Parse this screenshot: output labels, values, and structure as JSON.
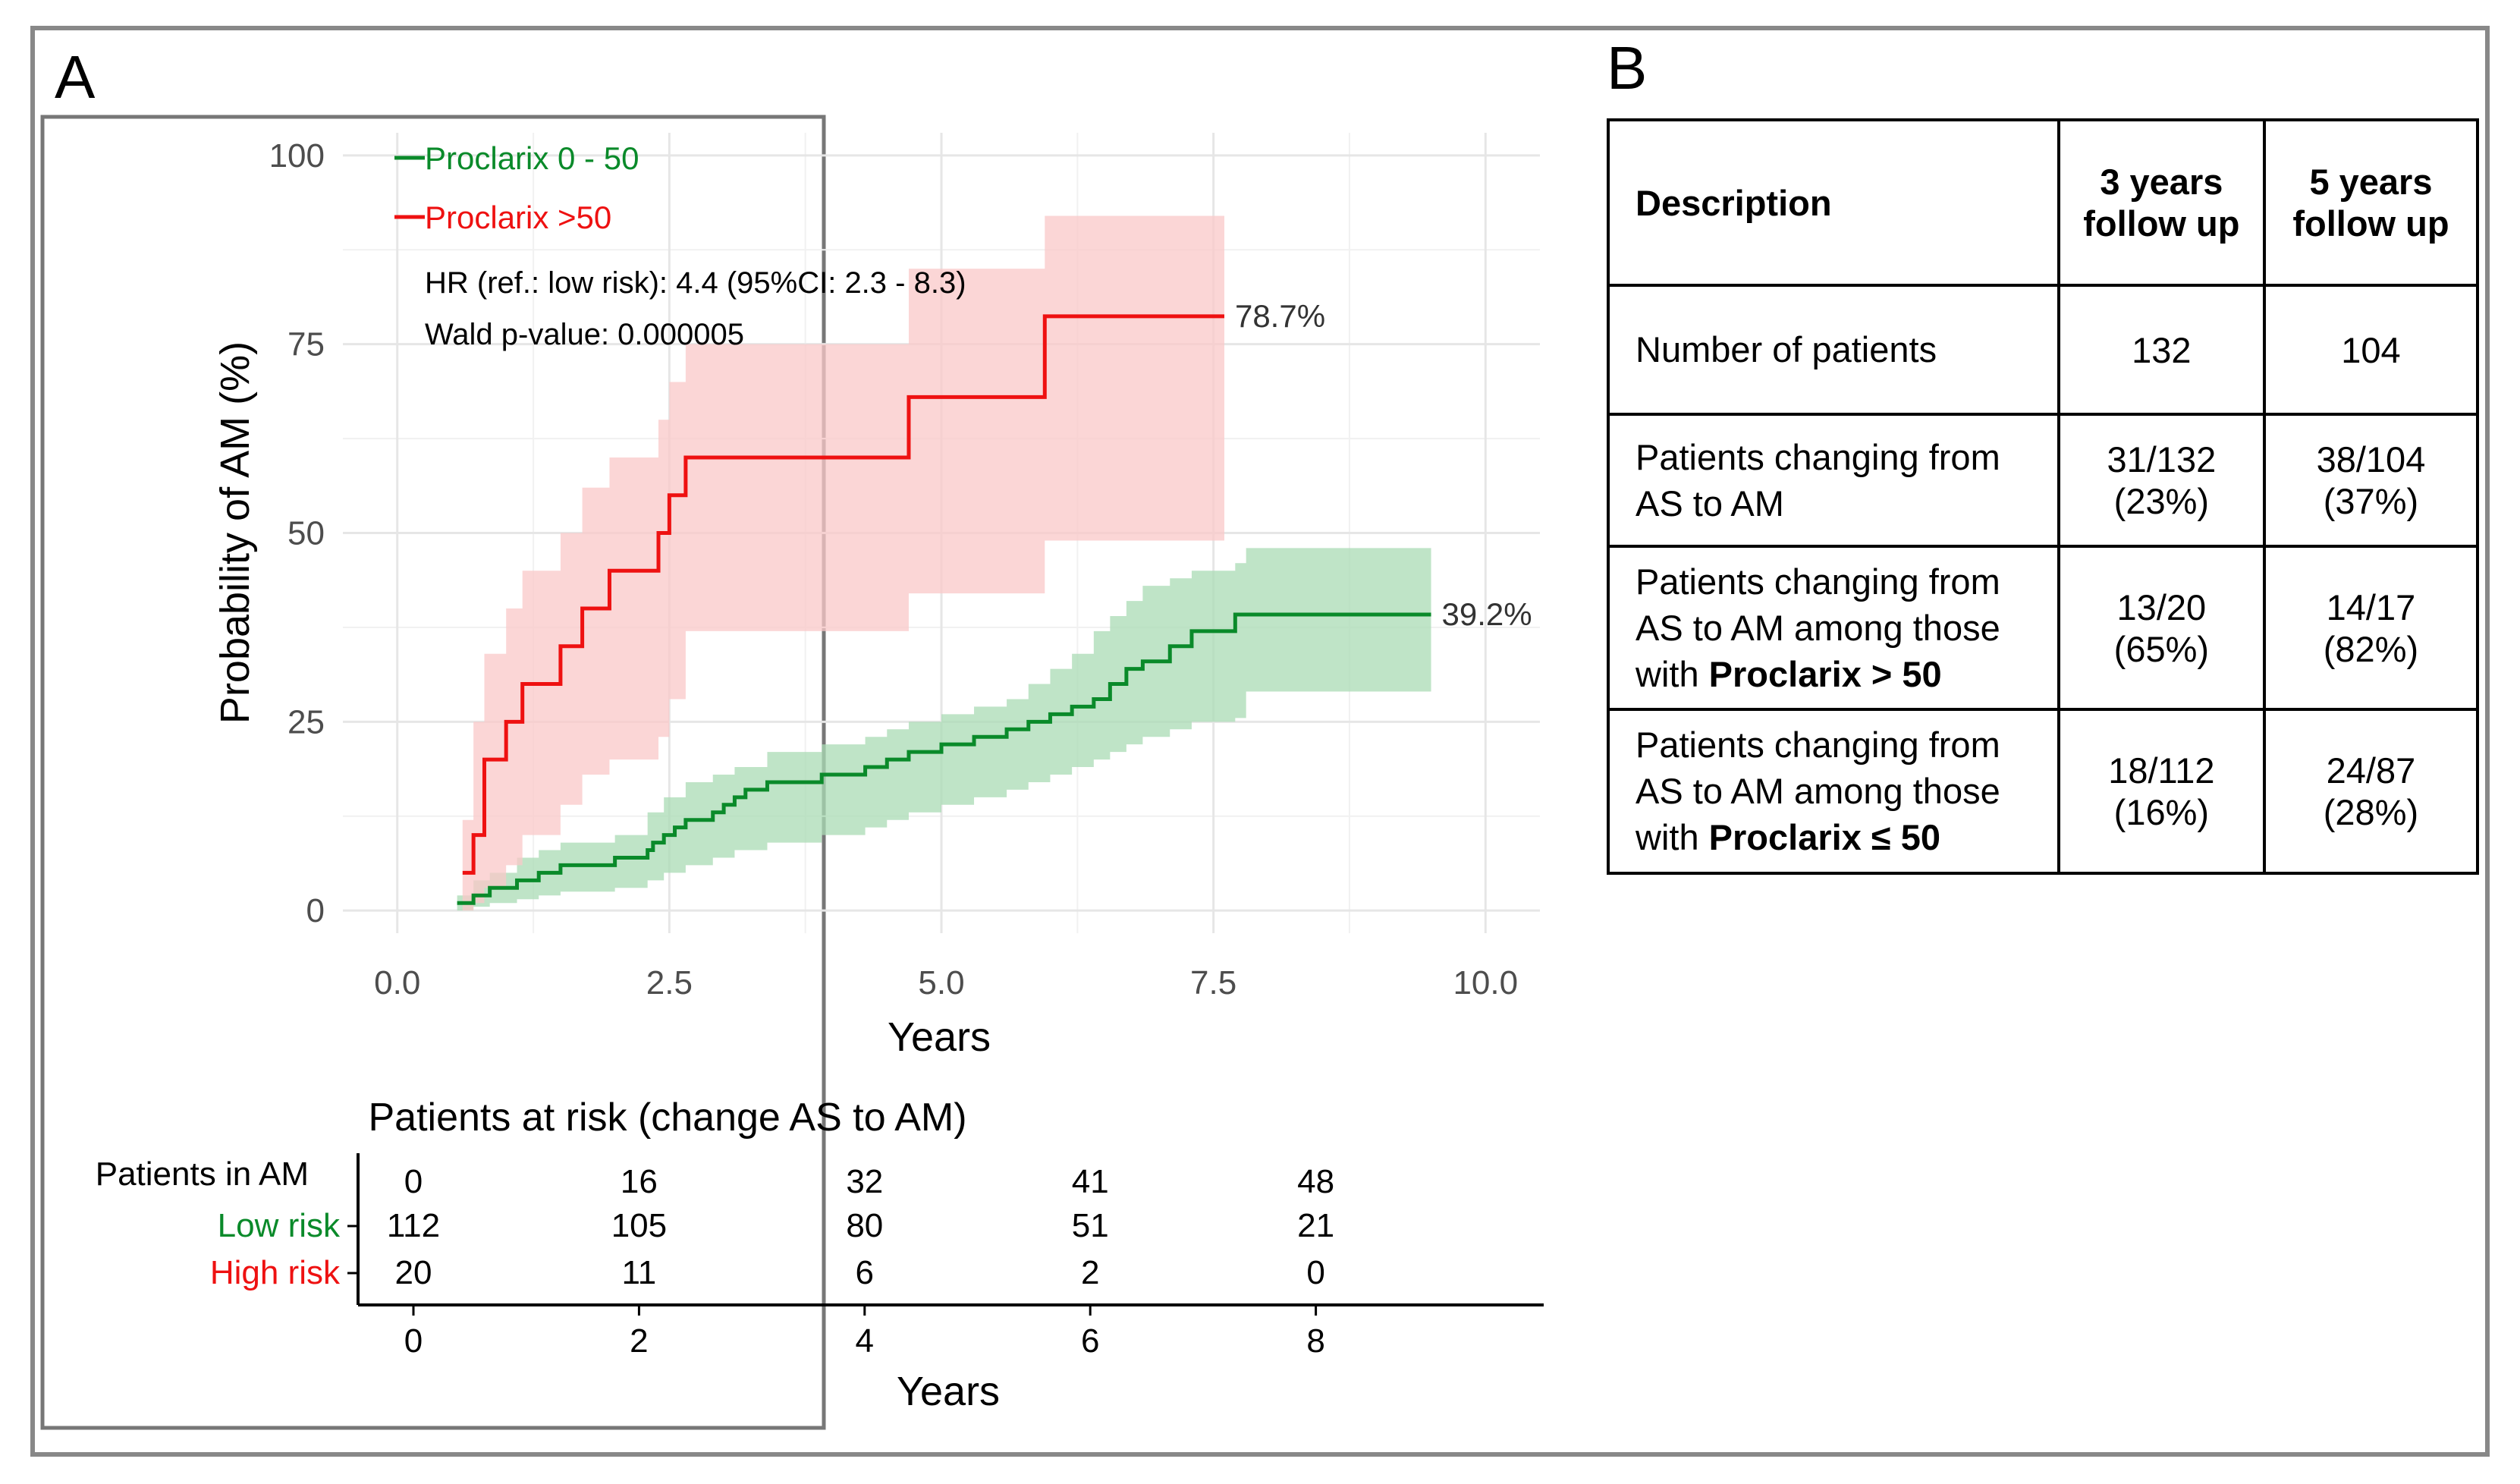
{
  "panel_a_letter": "A",
  "panel_b_letter": "B",
  "chart_data": {
    "type": "line",
    "step": true,
    "xlabel": "Years",
    "ylabel": "Probability of AM (%)",
    "xlim": [
      -0.5,
      10.5
    ],
    "ylim": [
      -3,
      103
    ],
    "x_ticks": [
      0,
      2.5,
      5,
      7.5,
      10
    ],
    "x_tick_labels": [
      "0.0",
      "2.5",
      "5.0",
      "7.5",
      "10.0"
    ],
    "y_ticks": [
      0,
      25,
      50,
      75,
      100
    ],
    "y_tick_labels": [
      "0",
      "25",
      "50",
      "75",
      "100"
    ],
    "grid": true,
    "legend_position": "top-left",
    "annotations": [
      "HR (ref.: low risk): 4.4 (95%CI: 2.3 - 8.3)",
      "Wald p-value: 0.000005"
    ],
    "series": [
      {
        "name": "Proclarix 0 - 50",
        "color": "#0a8a2a",
        "band_color": "#a9dbb4",
        "end_label": "39.2%",
        "points": [
          [
            0.55,
            1
          ],
          [
            0.7,
            2
          ],
          [
            0.85,
            3
          ],
          [
            1.1,
            4
          ],
          [
            1.3,
            5
          ],
          [
            1.5,
            6
          ],
          [
            2.0,
            7
          ],
          [
            2.3,
            8
          ],
          [
            2.35,
            9
          ],
          [
            2.45,
            10
          ],
          [
            2.55,
            11
          ],
          [
            2.65,
            12
          ],
          [
            2.9,
            13
          ],
          [
            3.0,
            14
          ],
          [
            3.1,
            15
          ],
          [
            3.2,
            16
          ],
          [
            3.4,
            17
          ],
          [
            3.9,
            18
          ],
          [
            4.3,
            19
          ],
          [
            4.5,
            20
          ],
          [
            4.7,
            21
          ],
          [
            5.0,
            22
          ],
          [
            5.3,
            23
          ],
          [
            5.6,
            24
          ],
          [
            5.8,
            25
          ],
          [
            6.0,
            26
          ],
          [
            6.2,
            27
          ],
          [
            6.4,
            28
          ],
          [
            6.55,
            30
          ],
          [
            6.7,
            32
          ],
          [
            6.85,
            33
          ],
          [
            7.1,
            35
          ],
          [
            7.3,
            37
          ],
          [
            7.7,
            39.2
          ],
          [
            9.5,
            39.2
          ]
        ],
        "lower": [
          [
            0.55,
            0
          ],
          [
            0.7,
            0.5
          ],
          [
            0.85,
            1
          ],
          [
            1.1,
            1.5
          ],
          [
            1.3,
            2
          ],
          [
            1.5,
            2.5
          ],
          [
            2.0,
            3
          ],
          [
            2.3,
            4
          ],
          [
            2.45,
            5
          ],
          [
            2.65,
            6
          ],
          [
            2.9,
            7
          ],
          [
            3.1,
            8
          ],
          [
            3.4,
            9
          ],
          [
            3.9,
            10
          ],
          [
            4.3,
            11
          ],
          [
            4.5,
            12
          ],
          [
            4.7,
            13
          ],
          [
            5.0,
            14
          ],
          [
            5.3,
            15
          ],
          [
            5.6,
            16
          ],
          [
            5.8,
            17
          ],
          [
            6.0,
            18
          ],
          [
            6.2,
            19
          ],
          [
            6.4,
            20
          ],
          [
            6.55,
            21
          ],
          [
            6.7,
            22
          ],
          [
            6.85,
            23
          ],
          [
            7.1,
            24
          ],
          [
            7.3,
            25
          ],
          [
            7.7,
            25.5
          ],
          [
            7.8,
            29
          ],
          [
            9.5,
            29
          ]
        ],
        "upper": [
          [
            0.55,
            2
          ],
          [
            0.7,
            4
          ],
          [
            0.85,
            5
          ],
          [
            1.1,
            7
          ],
          [
            1.3,
            8
          ],
          [
            1.5,
            9
          ],
          [
            2.0,
            10
          ],
          [
            2.3,
            13
          ],
          [
            2.45,
            15
          ],
          [
            2.65,
            17
          ],
          [
            2.9,
            18
          ],
          [
            3.1,
            19
          ],
          [
            3.4,
            21
          ],
          [
            3.9,
            22
          ],
          [
            4.3,
            23
          ],
          [
            4.5,
            24
          ],
          [
            4.7,
            25
          ],
          [
            5.0,
            26
          ],
          [
            5.3,
            27
          ],
          [
            5.6,
            28
          ],
          [
            5.8,
            30
          ],
          [
            6.0,
            32
          ],
          [
            6.2,
            34
          ],
          [
            6.4,
            37
          ],
          [
            6.55,
            39
          ],
          [
            6.7,
            41
          ],
          [
            6.85,
            43
          ],
          [
            7.1,
            44
          ],
          [
            7.3,
            45
          ],
          [
            7.7,
            46
          ],
          [
            7.8,
            48
          ],
          [
            9.5,
            48
          ]
        ]
      },
      {
        "name": "Proclarix >50",
        "color": "#ee1111",
        "band_color": "#f9c8c8",
        "end_label": "78.7%",
        "points": [
          [
            0.6,
            5
          ],
          [
            0.7,
            10
          ],
          [
            0.8,
            20
          ],
          [
            1.0,
            25
          ],
          [
            1.15,
            30
          ],
          [
            1.5,
            35
          ],
          [
            1.7,
            40
          ],
          [
            1.95,
            45
          ],
          [
            2.4,
            50
          ],
          [
            2.5,
            55
          ],
          [
            2.65,
            60
          ],
          [
            4.7,
            68
          ],
          [
            5.95,
            78.7
          ],
          [
            7.6,
            78.7
          ]
        ],
        "lower": [
          [
            0.6,
            0
          ],
          [
            0.7,
            1
          ],
          [
            0.8,
            3
          ],
          [
            1.0,
            6
          ],
          [
            1.15,
            10
          ],
          [
            1.5,
            14
          ],
          [
            1.7,
            18
          ],
          [
            1.95,
            20
          ],
          [
            2.4,
            23
          ],
          [
            2.5,
            28
          ],
          [
            2.65,
            37
          ],
          [
            4.7,
            42
          ],
          [
            5.95,
            49
          ],
          [
            7.6,
            49
          ]
        ],
        "upper": [
          [
            0.6,
            12
          ],
          [
            0.7,
            25
          ],
          [
            0.8,
            34
          ],
          [
            1.0,
            40
          ],
          [
            1.15,
            45
          ],
          [
            1.5,
            50
          ],
          [
            1.7,
            56
          ],
          [
            1.95,
            60
          ],
          [
            2.4,
            65
          ],
          [
            2.5,
            70
          ],
          [
            2.65,
            75
          ],
          [
            4.7,
            85
          ],
          [
            5.95,
            92
          ],
          [
            7.6,
            92
          ]
        ]
      }
    ],
    "risk_table": {
      "title": "Patients at risk (change AS to AM)",
      "xlabel": "Years",
      "x_ticks": [
        0,
        2,
        4,
        6,
        8
      ],
      "xlim": [
        0,
        10
      ],
      "rows": [
        {
          "label": "Patients in AM",
          "color": "#000000",
          "values": [
            "0",
            "16",
            "32",
            "41",
            "48"
          ]
        },
        {
          "label": "Low risk",
          "color": "#0a8a2a",
          "values": [
            "112",
            "105",
            "80",
            "51",
            "21"
          ]
        },
        {
          "label": "High risk",
          "color": "#ee1111",
          "values": [
            "20",
            "11",
            "6",
            "2",
            "0"
          ]
        }
      ]
    }
  },
  "table_b": {
    "headers": [
      "Description",
      "3 years follow up",
      "5 years follow up"
    ],
    "rows": [
      {
        "desc": "Number of patients",
        "desc_bold": "",
        "y3": "132",
        "y3b": "",
        "y5": "104",
        "y5b": ""
      },
      {
        "desc": "Patients changing from AS to AM",
        "desc_bold": "",
        "y3": "31/132",
        "y3b": "(23%)",
        "y5": "38/104",
        "y5b": "(37%)"
      },
      {
        "desc": "Patients changing from AS to AM among those with",
        "desc_bold": "Proclarix > 50",
        "y3": "13/20",
        "y3b": "(65%)",
        "y5": "14/17",
        "y5b": "(82%)"
      },
      {
        "desc": "Patients changing from AS to AM among those with",
        "desc_bold": "Proclarix ≤ 50",
        "y3": "18/112",
        "y3b": "(16%)",
        "y5": "24/87",
        "y5b": "(28%)"
      }
    ]
  }
}
